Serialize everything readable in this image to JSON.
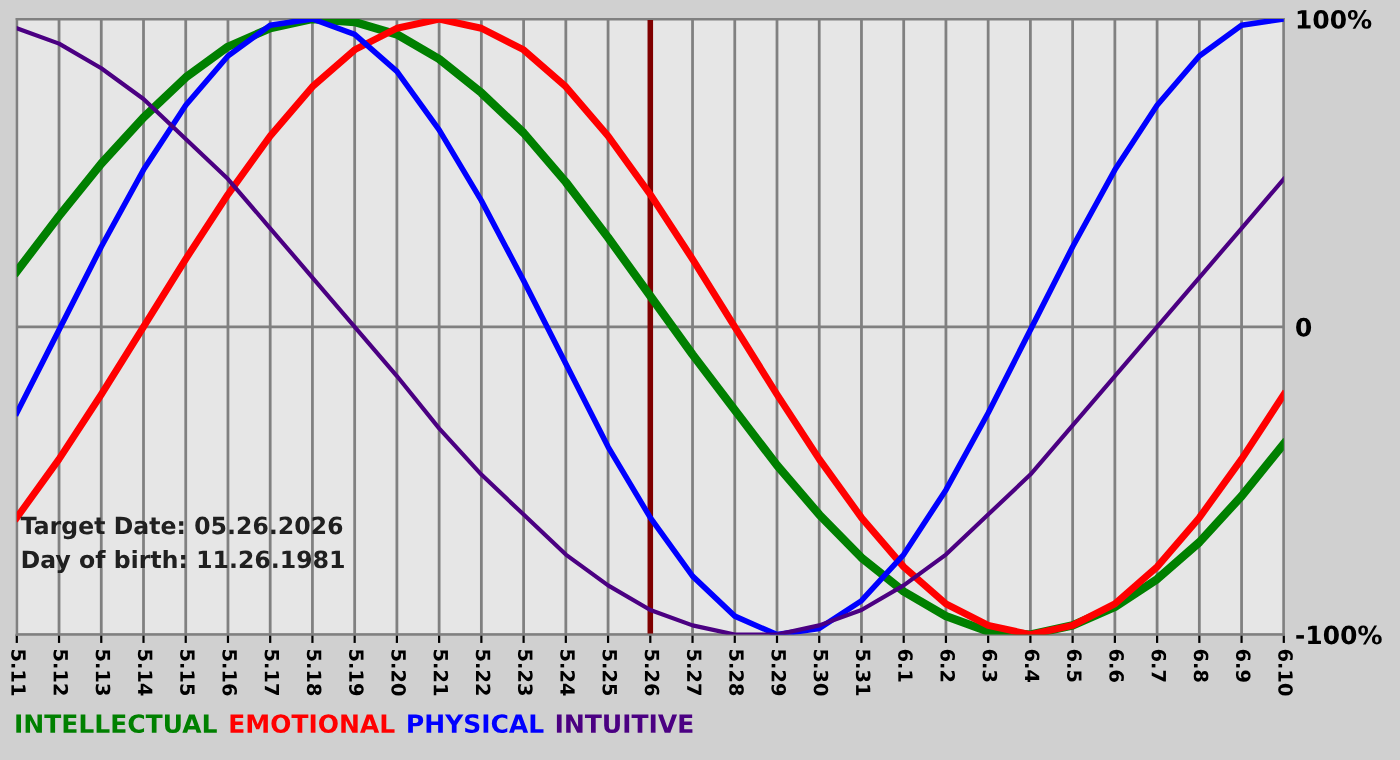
{
  "chart_data": {
    "type": "line",
    "categories": [
      "5.11",
      "5.12",
      "5.13",
      "5.14",
      "5.15",
      "5.16",
      "5.17",
      "5.18",
      "5.19",
      "5.20",
      "5.21",
      "5.22",
      "5.23",
      "5.24",
      "5.25",
      "5.26",
      "5.27",
      "5.28",
      "5.29",
      "5.30",
      "5.31",
      "6.1",
      "6.2",
      "6.3",
      "6.4",
      "6.5",
      "6.6",
      "6.7",
      "6.8",
      "6.9",
      "6.10"
    ],
    "series": [
      {
        "name": "INTELLECTUAL",
        "color": "#008000",
        "values": [
          18,
          36,
          53,
          68,
          81,
          91,
          97,
          100,
          99,
          95,
          87,
          76,
          63,
          47,
          29,
          10,
          -9,
          -27,
          -45,
          -61,
          -75,
          -86,
          -94,
          -99,
          -100,
          -97,
          -91,
          -82,
          -70,
          -55,
          -38
        ]
      },
      {
        "name": "EMOTIONAL",
        "color": "#ff0000",
        "values": [
          -62,
          -43,
          -22,
          0,
          22,
          43,
          62,
          78,
          90,
          97,
          100,
          97,
          90,
          78,
          62,
          43,
          22,
          0,
          -22,
          -43,
          -62,
          -78,
          -90,
          -97,
          -100,
          -97,
          -90,
          -78,
          -62,
          -43,
          -22
        ]
      },
      {
        "name": "PHYSICAL",
        "color": "#0000ff",
        "values": [
          -28,
          -1,
          26,
          51,
          72,
          88,
          98,
          100,
          95,
          83,
          64,
          41,
          15,
          -12,
          -39,
          -62,
          -81,
          -94,
          -100,
          -98,
          -89,
          -74,
          -53,
          -28,
          -1,
          26,
          51,
          72,
          88,
          98,
          100
        ]
      },
      {
        "name": "INTUITIVE",
        "color": "#4b0082",
        "values": [
          97,
          92,
          84,
          74,
          61,
          48,
          32,
          16,
          0,
          -16,
          -33,
          -48,
          -61,
          -74,
          -84,
          -92,
          -97,
          -100,
          -100,
          -97,
          -92,
          -84,
          -74,
          -61,
          -48,
          -32,
          -16,
          0,
          16,
          32,
          48
        ]
      }
    ],
    "ylim": [
      -100,
      100
    ],
    "yticks": [
      {
        "value": 100,
        "label": "100%"
      },
      0,
      {
        "value": -100,
        "label": "-100%"
      }
    ],
    "ref_lines": [
      {
        "axis": "x",
        "value": "5.26",
        "label": null,
        "color": "#800000"
      }
    ],
    "annotations": [
      "Target Date: 05.26.2026",
      "Day of birth: 11.26.1981"
    ],
    "grid": true,
    "legend": "bottom",
    "marker": "none",
    "line_style": "solid"
  }
}
